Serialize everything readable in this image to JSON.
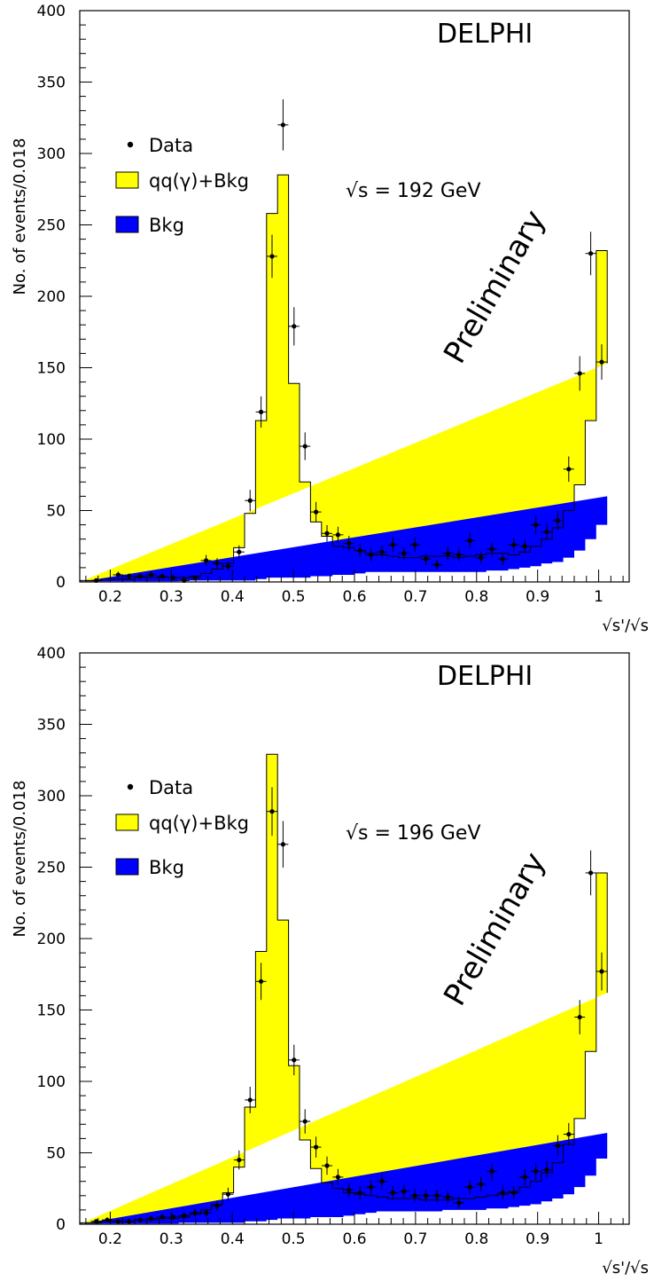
{
  "chart_data": [
    {
      "type": "bar",
      "experiment": "DELPHI",
      "energy_label": "√s = 192 GeV",
      "watermark": "Preliminary",
      "ylabel": "No. of events/0.018",
      "xlabel": "√s'/√s",
      "legend": [
        "Data",
        "qq(γ)+Bkg",
        "Bkg"
      ],
      "xlim": [
        0.15,
        1.05
      ],
      "ylim": [
        0,
        400
      ],
      "xticks": [
        "0.2",
        "0.3",
        "0.4",
        "0.5",
        "0.6",
        "0.7",
        "0.8",
        "0.9",
        "1"
      ],
      "yticks": [
        "0",
        "50",
        "100",
        "150",
        "200",
        "250",
        "300",
        "350",
        "400"
      ],
      "bin_edges": [
        0.15,
        0.168,
        0.186,
        0.204,
        0.222,
        0.24,
        0.258,
        0.276,
        0.294,
        0.312,
        0.33,
        0.348,
        0.366,
        0.384,
        0.402,
        0.42,
        0.438,
        0.456,
        0.474,
        0.492,
        0.51,
        0.528,
        0.546,
        0.564,
        0.582,
        0.6,
        0.618,
        0.636,
        0.654,
        0.672,
        0.69,
        0.708,
        0.726,
        0.744,
        0.762,
        0.78,
        0.798,
        0.816,
        0.834,
        0.852,
        0.87,
        0.888,
        0.906,
        0.924,
        0.942,
        0.96,
        0.978,
        0.996,
        1.014
      ],
      "series": [
        {
          "name": "qq(γ)+Bkg",
          "color": "#ffff00",
          "values": [
            1,
            1,
            2,
            2,
            2,
            3,
            3,
            3,
            3,
            3,
            4,
            6,
            9,
            13,
            24,
            48,
            113,
            258,
            285,
            139,
            70,
            42,
            32,
            25,
            24,
            22,
            20,
            19,
            18,
            17,
            17,
            18,
            18,
            18,
            17,
            18,
            19,
            20,
            20,
            19,
            21,
            25,
            30,
            38,
            50,
            68,
            113,
            232,
            153
          ]
        },
        {
          "name": "Bkg",
          "color": "#0000ff",
          "values": [
            0.5,
            0.5,
            0.5,
            0.5,
            0.5,
            0.5,
            0.5,
            0.5,
            0.5,
            1,
            1,
            1,
            1,
            1,
            1,
            1,
            2,
            3,
            3,
            3,
            3,
            4,
            4,
            5,
            5,
            6,
            7,
            7,
            7,
            7,
            7,
            7,
            7,
            7,
            7,
            7,
            7,
            8,
            8,
            9,
            10,
            11,
            13,
            14,
            17,
            22,
            30,
            40,
            60
          ]
        },
        {
          "name": "Data",
          "color": "#000000",
          "x": [
            0.177,
            0.213,
            0.231,
            0.249,
            0.267,
            0.285,
            0.303,
            0.321,
            0.339,
            0.357,
            0.375,
            0.393,
            0.411,
            0.429,
            0.447,
            0.465,
            0.483,
            0.501,
            0.519,
            0.537,
            0.555,
            0.573,
            0.591,
            0.609,
            0.627,
            0.645,
            0.663,
            0.681,
            0.699,
            0.717,
            0.735,
            0.753,
            0.771,
            0.789,
            0.807,
            0.825,
            0.843,
            0.861,
            0.879,
            0.897,
            0.915,
            0.933,
            0.951,
            0.969,
            0.987,
            1.005
          ],
          "values": [
            1,
            5,
            4,
            4,
            5,
            4,
            3,
            1,
            3,
            15,
            13,
            11,
            21,
            57,
            119,
            228,
            320,
            179,
            95,
            49,
            34,
            33,
            27,
            22,
            19,
            21,
            26,
            20,
            26,
            16,
            12,
            20,
            19,
            29,
            17,
            23,
            16,
            26,
            25,
            40,
            35,
            43,
            79,
            146,
            230,
            154
          ],
          "errors": [
            1,
            2.2,
            2,
            2,
            2.2,
            2,
            1.7,
            1,
            1.7,
            3.9,
            3.6,
            3.3,
            4.6,
            7.5,
            10.9,
            15.1,
            17.9,
            13.4,
            9.7,
            7,
            5.8,
            5.7,
            5.2,
            4.7,
            4.4,
            4.6,
            5.1,
            4.5,
            5.1,
            4,
            3.5,
            4.5,
            4.4,
            5.4,
            4.1,
            4.8,
            4,
            5.1,
            5,
            6.3,
            5.9,
            6.6,
            8.9,
            12.1,
            15.2,
            12.4
          ]
        }
      ]
    },
    {
      "type": "bar",
      "experiment": "DELPHI",
      "energy_label": "√s = 196 GeV",
      "watermark": "Preliminary",
      "ylabel": "No. of events/0.018",
      "xlabel": "√s'/√s",
      "legend": [
        "Data",
        "qq(γ)+Bkg",
        "Bkg"
      ],
      "xlim": [
        0.15,
        1.05
      ],
      "ylim": [
        0,
        400
      ],
      "xticks": [
        "0.2",
        "0.3",
        "0.4",
        "0.5",
        "0.6",
        "0.7",
        "0.8",
        "0.9",
        "1"
      ],
      "yticks": [
        "0",
        "50",
        "100",
        "150",
        "200",
        "250",
        "300",
        "350",
        "400"
      ],
      "bin_edges": [
        0.15,
        0.168,
        0.186,
        0.204,
        0.222,
        0.24,
        0.258,
        0.276,
        0.294,
        0.312,
        0.33,
        0.348,
        0.366,
        0.384,
        0.402,
        0.42,
        0.438,
        0.456,
        0.474,
        0.492,
        0.51,
        0.528,
        0.546,
        0.564,
        0.582,
        0.6,
        0.618,
        0.636,
        0.654,
        0.672,
        0.69,
        0.708,
        0.726,
        0.744,
        0.762,
        0.78,
        0.798,
        0.816,
        0.834,
        0.852,
        0.87,
        0.888,
        0.906,
        0.924,
        0.942,
        0.96,
        0.978,
        0.996,
        1.014
      ],
      "series": [
        {
          "name": "qq(γ)+Bkg",
          "color": "#ffff00",
          "values": [
            1,
            1,
            2,
            2,
            2,
            3,
            3,
            4,
            4,
            5,
            7,
            10,
            14,
            22,
            40,
            82,
            191,
            329,
            213,
            111,
            59,
            39,
            29,
            25,
            22,
            21,
            20,
            19,
            18,
            18,
            18,
            17,
            17,
            17,
            18,
            18,
            19,
            20,
            21,
            23,
            26,
            30,
            36,
            43,
            56,
            74,
            121,
            246,
            162
          ]
        },
        {
          "name": "Bkg",
          "color": "#0000ff",
          "values": [
            0.5,
            0.5,
            0.5,
            0.5,
            0.5,
            0.5,
            0.5,
            0.5,
            0.5,
            1,
            1,
            1,
            1,
            1,
            1,
            2,
            2,
            3,
            4,
            4,
            4,
            5,
            5,
            5,
            6,
            7,
            8,
            9,
            9,
            9,
            9,
            9,
            9,
            10,
            10,
            10,
            10,
            11,
            11,
            12,
            13,
            14,
            16,
            18,
            21,
            26,
            34,
            46,
            64
          ]
        },
        {
          "name": "Data",
          "color": "#000000",
          "x": [
            0.177,
            0.195,
            0.213,
            0.231,
            0.249,
            0.267,
            0.285,
            0.303,
            0.321,
            0.339,
            0.357,
            0.375,
            0.393,
            0.411,
            0.429,
            0.447,
            0.465,
            0.483,
            0.501,
            0.519,
            0.537,
            0.555,
            0.573,
            0.591,
            0.609,
            0.627,
            0.645,
            0.663,
            0.681,
            0.699,
            0.717,
            0.735,
            0.753,
            0.771,
            0.789,
            0.807,
            0.825,
            0.843,
            0.861,
            0.879,
            0.897,
            0.915,
            0.933,
            0.951,
            0.969,
            0.987,
            1.005
          ],
          "values": [
            2,
            3,
            2,
            2,
            3,
            4,
            5,
            5,
            6,
            8,
            8,
            13,
            21,
            45,
            87,
            170,
            289,
            266,
            115,
            72,
            54,
            41,
            33,
            24,
            22,
            26,
            30,
            22,
            23,
            20,
            20,
            20,
            19,
            15,
            26,
            28,
            37,
            22,
            22,
            33,
            37,
            38,
            55,
            63,
            145,
            246,
            177
          ],
          "errors": [
            1.4,
            1.7,
            1.4,
            1.4,
            1.7,
            2,
            2.2,
            2.2,
            2.4,
            2.8,
            2.8,
            3.6,
            4.6,
            6.7,
            9.3,
            13,
            17,
            16.3,
            10.7,
            8.5,
            7.3,
            6.4,
            5.7,
            4.9,
            4.7,
            5.1,
            5.5,
            4.7,
            4.8,
            4.5,
            4.5,
            4.5,
            4.4,
            3.9,
            5.1,
            5.3,
            6.1,
            4.7,
            4.7,
            5.7,
            6.1,
            6.2,
            7.4,
            7.9,
            12,
            15.7,
            13.3
          ]
        }
      ]
    }
  ]
}
